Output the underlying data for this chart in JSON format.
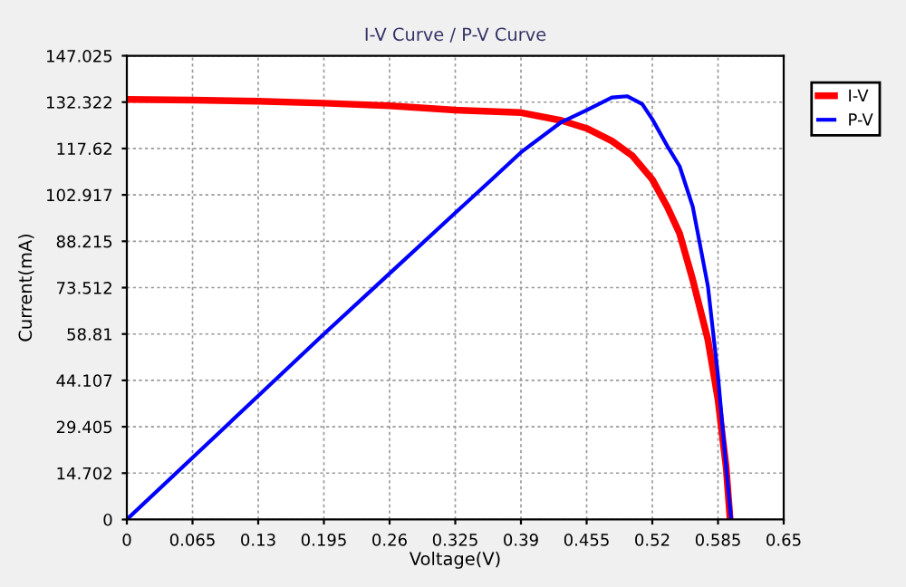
{
  "chart_data": {
    "type": "line",
    "title": "I-V Curve / P-V Curve",
    "xlabel": "Voltage(V)",
    "ylabel": "Current(mA)",
    "xlim": [
      0,
      0.65
    ],
    "xticks": [
      0,
      0.065,
      0.13,
      0.195,
      0.26,
      0.325,
      0.39,
      0.455,
      0.52,
      0.585,
      0.65
    ],
    "ylim": [
      0,
      147.025
    ],
    "yticks": [
      0,
      14.702,
      29.405,
      44.107,
      58.81,
      73.512,
      88.215,
      102.917,
      117.62,
      132.322,
      147.025
    ],
    "grid": true,
    "legend": "top right",
    "marker": "none",
    "line_style": "solid",
    "series": [
      {
        "name": "I-V",
        "color": "#ff0000",
        "x": [
          0,
          0.065,
          0.13,
          0.195,
          0.26,
          0.325,
          0.39,
          0.43,
          0.455,
          0.48,
          0.5,
          0.52,
          0.535,
          0.547,
          0.56,
          0.575,
          0.585,
          0.593,
          0.597
        ],
        "values": [
          133.2,
          133,
          132.6,
          132,
          131.2,
          129.8,
          129,
          126.5,
          124,
          120,
          115.4,
          107.8,
          99,
          90.7,
          76,
          57,
          38,
          16.7,
          0
        ]
      },
      {
        "name": "P-V",
        "color": "#0000ff",
        "x": [
          0,
          0.065,
          0.13,
          0.195,
          0.26,
          0.325,
          0.36,
          0.39,
          0.43,
          0.455,
          0.48,
          0.495,
          0.51,
          0.52,
          0.535,
          0.547,
          0.56,
          0.575,
          0.585,
          0.593,
          0.598
        ],
        "values": [
          0,
          19.6,
          39.2,
          58.8,
          78,
          97.2,
          107.5,
          116.4,
          126,
          129.8,
          133.8,
          134.2,
          131.7,
          126.9,
          118.3,
          112,
          99.2,
          74,
          45.5,
          16.7,
          0
        ]
      }
    ]
  }
}
